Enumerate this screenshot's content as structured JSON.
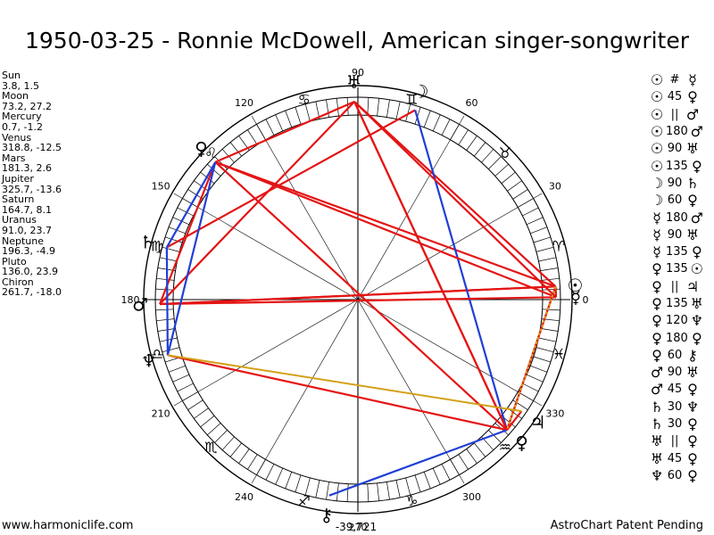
{
  "title": "1950-03-25 - Ronnie McDowell, American singer-songwriter",
  "planets": [
    {
      "name": "Sun",
      "coords": "3.8, 1.5",
      "lon": 3.8,
      "glyph": "☉",
      "color": "#000000",
      "key": "sun"
    },
    {
      "name": "Moon",
      "coords": "73.2, 27.2",
      "lon": 73.2,
      "glyph": "☽",
      "color": "#000000",
      "key": "moon"
    },
    {
      "name": "Mercury",
      "coords": "0.7, -1.2",
      "lon": 0.7,
      "glyph": "☿",
      "color": "#000000",
      "key": "mercury"
    },
    {
      "name": "Venus",
      "coords": "318.8, -12.5",
      "lon": 318.8,
      "glyph": "♀",
      "color": "#000000",
      "key": "venus"
    },
    {
      "name": "Mars",
      "coords": "181.3, 2.6",
      "lon": 181.3,
      "glyph": "♂",
      "color": "#000000",
      "key": "mars"
    },
    {
      "name": "Jupiter",
      "coords": "325.7, -13.6",
      "lon": 325.7,
      "glyph": "♃",
      "color": "#000000",
      "key": "jupiter"
    },
    {
      "name": "Saturn",
      "coords": "164.7, 8.1",
      "lon": 164.7,
      "glyph": "♄",
      "color": "#000000",
      "key": "saturn"
    },
    {
      "name": "Uranus",
      "coords": "91.0, 23.7",
      "lon": 91.0,
      "glyph": "♅",
      "color": "#000000",
      "key": "uranus"
    },
    {
      "name": "Neptune",
      "coords": "196.3, -4.9",
      "lon": 196.3,
      "glyph": "♆",
      "color": "#000000",
      "key": "neptune"
    },
    {
      "name": "Pluto",
      "coords": "136.0, 23.9",
      "lon": 136.0,
      "glyph": "♀",
      "color": "#000000",
      "key": "pluto"
    },
    {
      "name": "Chiron",
      "coords": "261.7, -18.0",
      "lon": 261.7,
      "glyph": "⚷",
      "color": "#000000",
      "key": "chiron"
    }
  ],
  "aspects": [
    {
      "p1": "sun",
      "p2": "mercury",
      "aspect": "#",
      "p1_glyph": "☉",
      "p2_glyph": "☿",
      "color": "#e41414"
    },
    {
      "p1": "sun",
      "p2": "venus",
      "aspect": "45",
      "p1_glyph": "☉",
      "p2_glyph": "♀",
      "color": "#e41414"
    },
    {
      "p1": "sun",
      "p2": "mars",
      "aspect": "||",
      "p1_glyph": "☉",
      "p2_glyph": "♂",
      "color": "#e41414"
    },
    {
      "p1": "sun",
      "p2": "mars",
      "aspect": "180",
      "p1_glyph": "☉",
      "p2_glyph": "♂",
      "color": "#e41414"
    },
    {
      "p1": "sun",
      "p2": "uranus",
      "aspect": "90",
      "p1_glyph": "☉",
      "p2_glyph": "♅",
      "color": "#e41414"
    },
    {
      "p1": "sun",
      "p2": "pluto",
      "aspect": "135",
      "p1_glyph": "☉",
      "p2_glyph": "♀",
      "color": "#e41414"
    },
    {
      "p1": "moon",
      "p2": "saturn",
      "aspect": "90",
      "p1_glyph": "☽",
      "p2_glyph": "♄",
      "color": "#e41414"
    },
    {
      "p1": "moon",
      "p2": "venus",
      "aspect": "60",
      "p1_glyph": "☽",
      "p2_glyph": "♀",
      "color": "#1f3fd6"
    },
    {
      "p1": "mercury",
      "p2": "mars",
      "aspect": "180",
      "p1_glyph": "☿",
      "p2_glyph": "♂",
      "color": "#e41414"
    },
    {
      "p1": "mercury",
      "p2": "uranus",
      "aspect": "90",
      "p1_glyph": "☿",
      "p2_glyph": "♅",
      "color": "#e41414"
    },
    {
      "p1": "mercury",
      "p2": "pluto",
      "aspect": "135",
      "p1_glyph": "☿",
      "p2_glyph": "♀",
      "color": "#e41414"
    },
    {
      "p1": "venus",
      "p2": "sun",
      "aspect": "135",
      "p1_glyph": "♀",
      "p2_glyph": "☉",
      "color": "#e41414"
    },
    {
      "p1": "venus",
      "p2": "jupiter",
      "aspect": "||",
      "p1_glyph": "♀",
      "p2_glyph": "♃",
      "color": "#e41414"
    },
    {
      "p1": "venus",
      "p2": "uranus",
      "aspect": "135",
      "p1_glyph": "♀",
      "p2_glyph": "♅",
      "color": "#e41414"
    },
    {
      "p1": "venus",
      "p2": "neptune",
      "aspect": "120",
      "p1_glyph": "♀",
      "p2_glyph": "♆",
      "color": "#e41414"
    },
    {
      "p1": "venus",
      "p2": "pluto",
      "aspect": "180",
      "p1_glyph": "♀",
      "p2_glyph": "♀",
      "color": "#e41414"
    },
    {
      "p1": "venus",
      "p2": "chiron",
      "aspect": "60",
      "p1_glyph": "♀",
      "p2_glyph": "⚷",
      "color": "#1f3fd6"
    },
    {
      "p1": "mars",
      "p2": "uranus",
      "aspect": "90",
      "p1_glyph": "♂",
      "p2_glyph": "♅",
      "color": "#e41414"
    },
    {
      "p1": "mars",
      "p2": "pluto",
      "aspect": "45",
      "p1_glyph": "♂",
      "p2_glyph": "♀",
      "color": "#e41414"
    },
    {
      "p1": "saturn",
      "p2": "neptune",
      "aspect": "30",
      "p1_glyph": "♄",
      "p2_glyph": "♆",
      "color": "#1f3fd6"
    },
    {
      "p1": "saturn",
      "p2": "pluto",
      "aspect": "30",
      "p1_glyph": "♄",
      "p2_glyph": "♀",
      "color": "#1f3fd6"
    },
    {
      "p1": "uranus",
      "p2": "venus",
      "aspect": "||",
      "p1_glyph": "♅",
      "p2_glyph": "♀",
      "color": "#e41414"
    },
    {
      "p1": "uranus",
      "p2": "pluto",
      "aspect": "45",
      "p1_glyph": "♅",
      "p2_glyph": "♀",
      "color": "#e41414"
    },
    {
      "p1": "neptune",
      "p2": "pluto",
      "aspect": "60",
      "p1_glyph": "♆",
      "p2_glyph": "♀",
      "color": "#1f3fd6"
    }
  ],
  "extra_lines": [
    {
      "p1": "neptune",
      "p2": "jupiter",
      "color": "#d4a017"
    },
    {
      "p1": "sun",
      "p2": "venus",
      "color": "#d4a017",
      "dashed": true
    }
  ],
  "degree_labels": [
    "0",
    "30",
    "60",
    "90",
    "120",
    "150",
    "180",
    "210",
    "240",
    "270",
    "300",
    "330"
  ],
  "sign_glyphs": [
    "♈",
    "♉",
    "♊",
    "♋",
    "♌",
    "♍",
    "♎",
    "♏",
    "♐",
    "♑",
    "♒",
    "♓"
  ],
  "bottom_value": "-39,721",
  "footer": {
    "website": "www.harmoniclife.com",
    "patent": "AstroChart Patent Pending"
  },
  "colors": {
    "aspect_red": "#e41414",
    "aspect_blue": "#1f3fd6",
    "aspect_gold": "#d4a017"
  }
}
